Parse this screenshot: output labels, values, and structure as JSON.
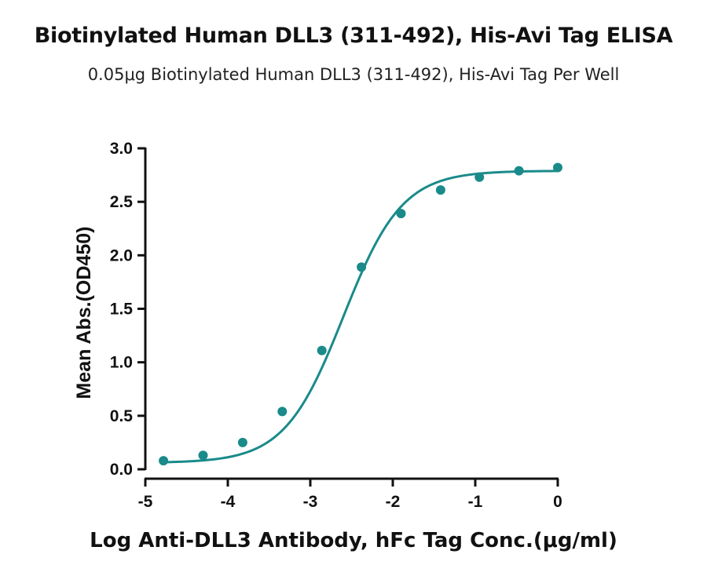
{
  "title": "Biotinylated Human DLL3 (311-492), His-Avi Tag ELISA",
  "subtitle": "0.05μg Biotinylated Human DLL3 (311-492), His-Avi Tag Per Well",
  "chart_data": {
    "type": "scatter",
    "title": "Biotinylated Human DLL3 (311-492), His-Avi Tag ELISA",
    "subtitle": "0.05μg Biotinylated Human DLL3 (311-492), His-Avi Tag Per Well",
    "xlabel": "Log Anti-DLL3 Antibody, hFc Tag Conc.(μg/ml)",
    "ylabel": "Mean Abs.(OD450)",
    "xlim": [
      -5,
      0
    ],
    "ylim": [
      0,
      3.0
    ],
    "x_ticks": [
      "-5",
      "-4",
      "-3",
      "-2",
      "-1",
      "0"
    ],
    "y_ticks": [
      "0.0",
      "0.5",
      "1.0",
      "1.5",
      "2.0",
      "2.5",
      "3.0"
    ],
    "grid": false,
    "legend": "none",
    "color": "#1a8a8a",
    "series": [
      {
        "x": [
          -4.78,
          -4.3,
          -3.82,
          -3.34,
          -2.86,
          -2.38,
          -1.9,
          -1.42,
          -0.95,
          -0.47,
          0.0
        ],
        "y": [
          0.08,
          0.13,
          0.25,
          0.54,
          1.11,
          1.89,
          2.39,
          2.61,
          2.73,
          2.79,
          2.82
        ]
      }
    ],
    "fit_curve": {
      "model": "4PL",
      "bottom": 0.06,
      "top": 2.79,
      "log_ec50": -2.6,
      "hill_slope": 1.22
    }
  }
}
